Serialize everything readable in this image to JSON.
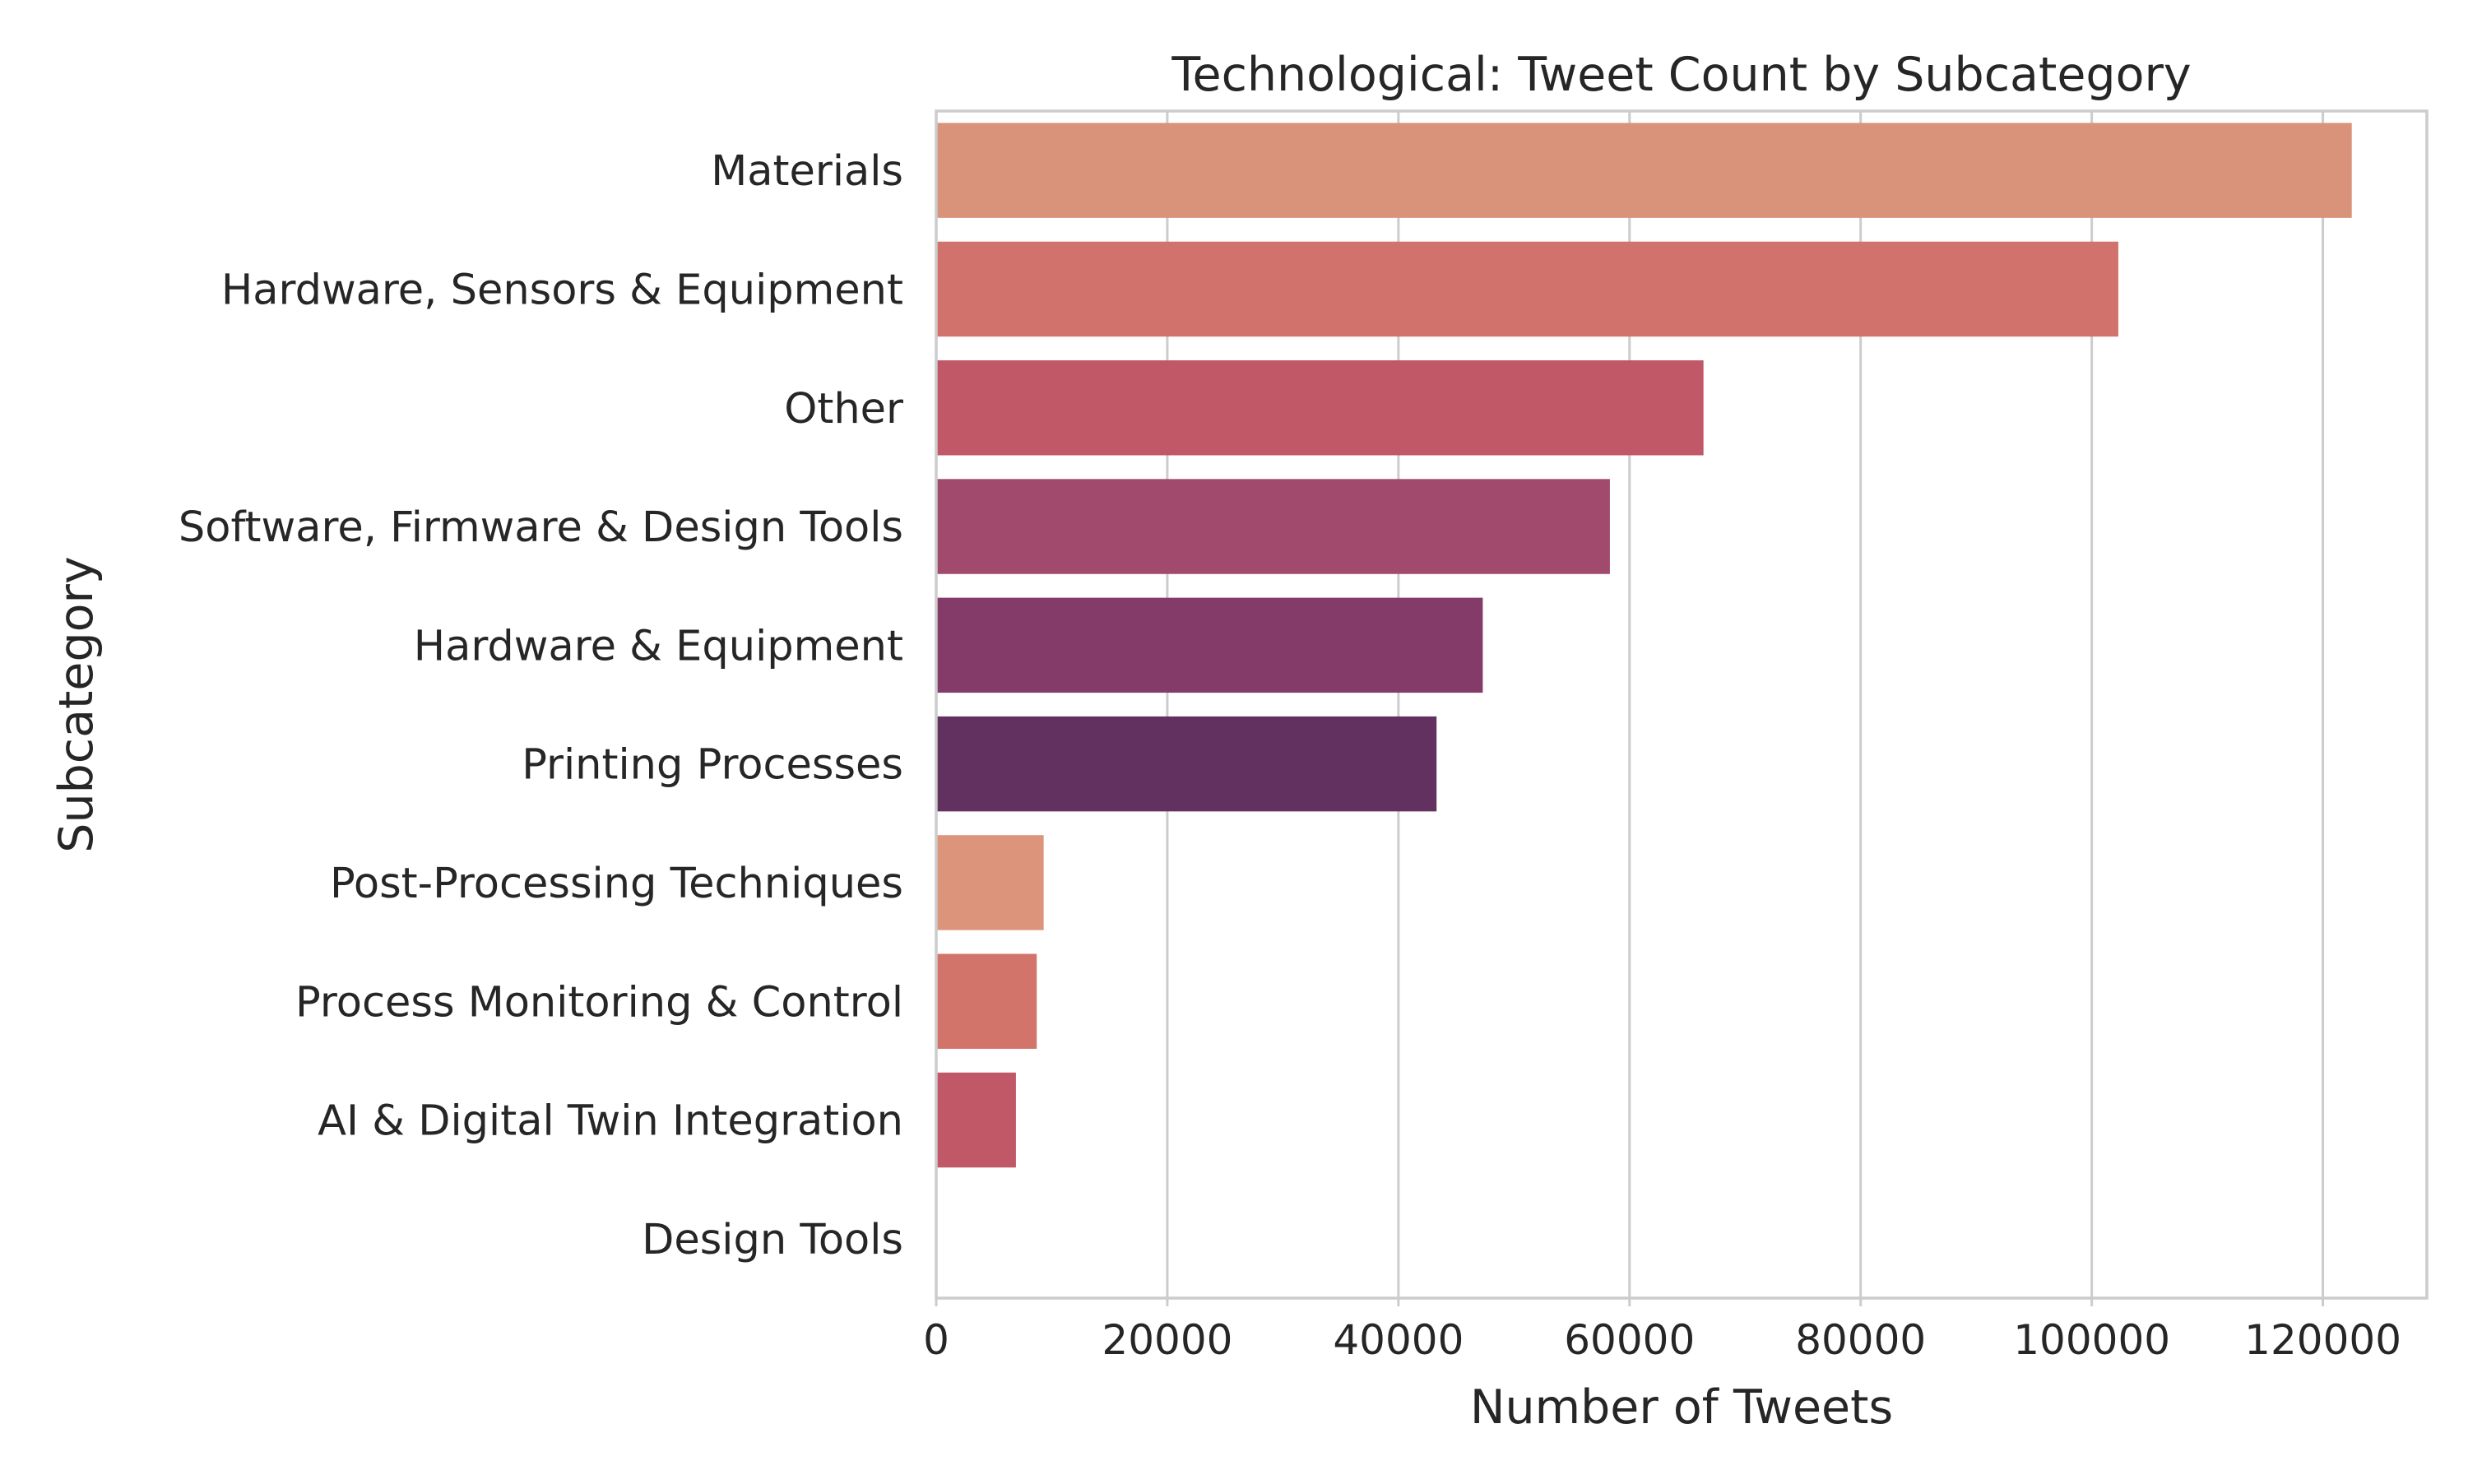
{
  "chart_data": {
    "type": "bar",
    "orientation": "horizontal",
    "title": "Technological: Tweet Count by Subcategory",
    "xlabel": "Number of Tweets",
    "ylabel": "Subcategory",
    "xlim": [
      0,
      129000
    ],
    "xticks": [
      0,
      20000,
      40000,
      60000,
      80000,
      100000,
      120000
    ],
    "grid": true,
    "legend": "none",
    "categories": [
      "Materials",
      "Hardware, Sensors & Equipment",
      "Other",
      "Software, Firmware & Design Tools",
      "Hardware & Equipment",
      "Printing Processes",
      "Post-Processing Techniques",
      "Process Monitoring & Control",
      "AI & Digital Twin Integration",
      "Design Tools"
    ],
    "values": [
      122500,
      102300,
      66400,
      58300,
      47300,
      43300,
      9300,
      8700,
      6900,
      0
    ],
    "colors": [
      "#d9937a",
      "#d2726c",
      "#c05868",
      "#a2496e",
      "#843b69",
      "#62315f",
      "#dc947a",
      "#d3746b",
      "#c05868",
      "#a2496e"
    ]
  }
}
